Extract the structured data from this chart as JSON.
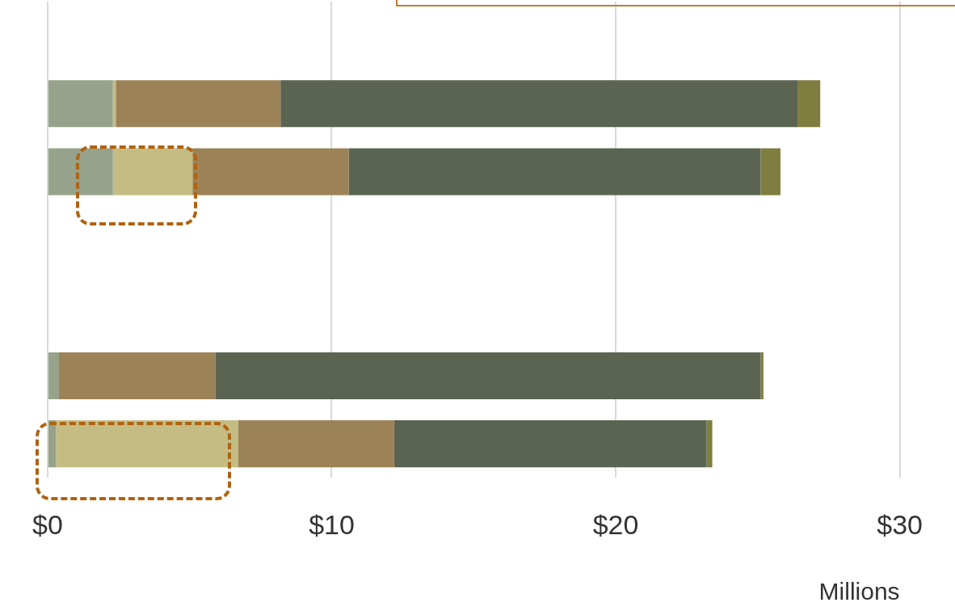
{
  "chart_data": {
    "type": "bar",
    "orientation": "horizontal",
    "stacked": true,
    "categories": [
      null,
      null,
      null,
      null,
      null,
      null,
      null
    ],
    "series": [
      {
        "color": "#97a28a",
        "values": [
          null,
          2.3,
          2.3,
          null,
          null,
          0.4,
          0.3
        ]
      },
      {
        "color": "#c4bc82",
        "values": [
          null,
          0.1,
          2.8,
          null,
          null,
          null,
          6.4
        ]
      },
      {
        "color": "#9b8357",
        "values": [
          null,
          5.8,
          5.5,
          null,
          null,
          5.5,
          5.5
        ]
      },
      {
        "color": "#5b6451",
        "values": [
          null,
          18.2,
          14.5,
          null,
          null,
          19.2,
          11.0
        ]
      },
      {
        "color": "#7f7d3f",
        "values": [
          null,
          0.8,
          0.7,
          null,
          null,
          0.1,
          0.2
        ]
      }
    ],
    "xlabel": "Millions",
    "xlim": [
      0,
      30
    ],
    "xticks": [
      {
        "value": 0,
        "label": "$0"
      },
      {
        "value": 10,
        "label": "$10"
      },
      {
        "value": 20,
        "label": "$20"
      },
      {
        "value": 30,
        "label": "$30"
      }
    ],
    "grid": "x",
    "legend": false,
    "tick_labels": "x"
  }
}
